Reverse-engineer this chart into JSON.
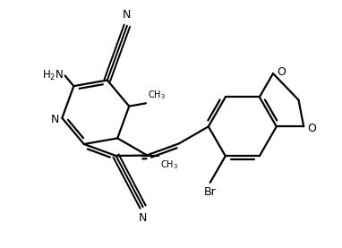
{
  "background_color": "#ffffff",
  "line_color": "#000000",
  "line_width": 1.6,
  "figsize": [
    3.82,
    2.77
  ],
  "dpi": 100,
  "xlim": [
    0,
    10
  ],
  "ylim": [
    0,
    7.25
  ]
}
